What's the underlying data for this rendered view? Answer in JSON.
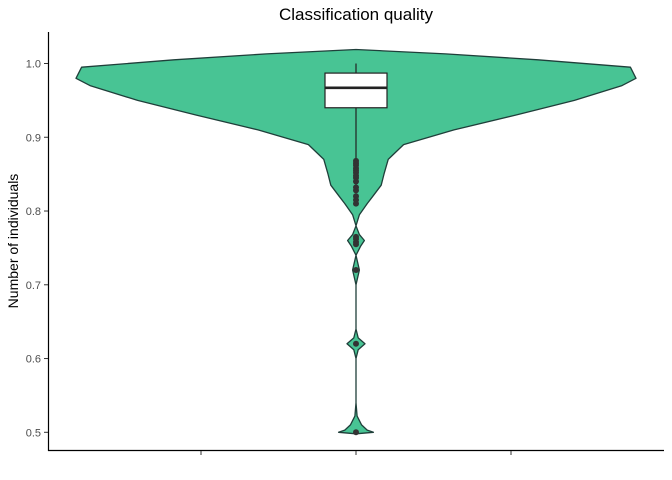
{
  "chart_data": {
    "type": "violin",
    "title": "Classification quality",
    "xlabel": "",
    "ylabel": "Number of individuals",
    "ylim": [
      0.5,
      1.0
    ],
    "y_ticks": [
      0.5,
      0.6,
      0.7,
      0.8,
      0.9,
      1.0
    ],
    "x_ticks": [
      "",
      "",
      ""
    ],
    "grid": false,
    "legend": "none",
    "fill_color": "#48C494",
    "outline_color": "#1F3F3A",
    "box": {
      "q1": 0.94,
      "median": 0.967,
      "q3": 0.987,
      "whisker_low": 0.87,
      "whisker_high": 1.0
    },
    "outliers": [
      0.868,
      0.865,
      0.862,
      0.858,
      0.855,
      0.852,
      0.848,
      0.845,
      0.84,
      0.832,
      0.828,
      0.82,
      0.815,
      0.81,
      0.765,
      0.762,
      0.758,
      0.755,
      0.72,
      0.62,
      0.5
    ],
    "density": [
      {
        "y": 0.498,
        "w": 0.0
      },
      {
        "y": 0.5,
        "w": 0.062
      },
      {
        "y": 0.503,
        "w": 0.04
      },
      {
        "y": 0.51,
        "w": 0.02
      },
      {
        "y": 0.522,
        "w": 0.004
      },
      {
        "y": 0.54,
        "w": 0.0
      },
      {
        "y": 0.6,
        "w": 0.0
      },
      {
        "y": 0.612,
        "w": 0.008
      },
      {
        "y": 0.62,
        "w": 0.032
      },
      {
        "y": 0.628,
        "w": 0.008
      },
      {
        "y": 0.64,
        "w": 0.0
      },
      {
        "y": 0.7,
        "w": 0.0
      },
      {
        "y": 0.72,
        "w": 0.012
      },
      {
        "y": 0.74,
        "w": 0.0
      },
      {
        "y": 0.752,
        "w": 0.016
      },
      {
        "y": 0.76,
        "w": 0.03
      },
      {
        "y": 0.768,
        "w": 0.012
      },
      {
        "y": 0.78,
        "w": 0.0
      },
      {
        "y": 0.795,
        "w": 0.012
      },
      {
        "y": 0.81,
        "w": 0.04
      },
      {
        "y": 0.82,
        "w": 0.06
      },
      {
        "y": 0.835,
        "w": 0.09
      },
      {
        "y": 0.85,
        "w": 0.1
      },
      {
        "y": 0.87,
        "w": 0.115
      },
      {
        "y": 0.89,
        "w": 0.17
      },
      {
        "y": 0.91,
        "w": 0.35
      },
      {
        "y": 0.93,
        "w": 0.57
      },
      {
        "y": 0.95,
        "w": 0.78
      },
      {
        "y": 0.97,
        "w": 0.95
      },
      {
        "y": 0.98,
        "w": 1.0
      },
      {
        "y": 0.995,
        "w": 0.98
      },
      {
        "y": 1.005,
        "w": 0.65
      },
      {
        "y": 1.013,
        "w": 0.32
      },
      {
        "y": 1.019,
        "w": 0.0
      }
    ]
  }
}
